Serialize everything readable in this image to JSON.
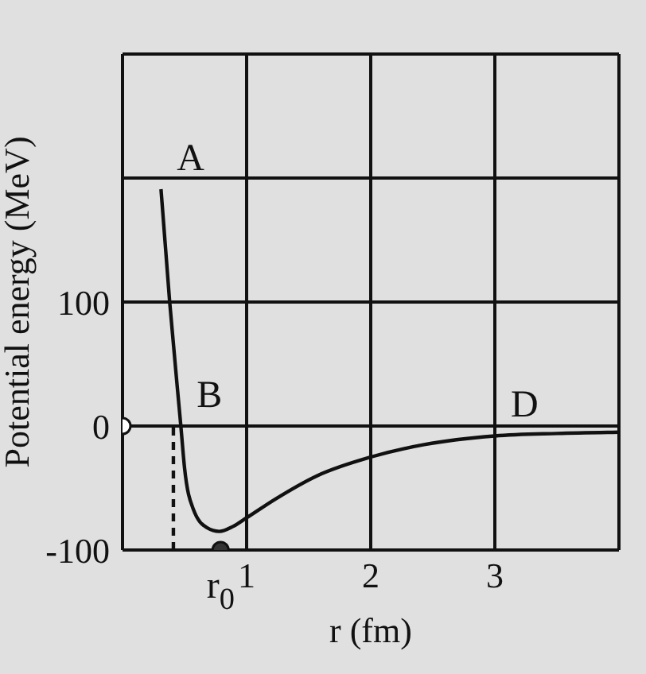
{
  "chart_data": {
    "type": "line",
    "xlabel": "r (fm)",
    "ylabel": "Potential energy (MeV)",
    "xlim": [
      0,
      4
    ],
    "ylim": [
      -100,
      300
    ],
    "xticks": [
      {
        "value": 0,
        "label": null
      },
      1,
      2,
      3,
      {
        "value": 4,
        "label": null
      }
    ],
    "yticks": [
      -100,
      0,
      100,
      {
        "value": 200,
        "label": null
      },
      {
        "value": 300,
        "label": null
      }
    ],
    "grid": true,
    "series": [
      {
        "color": "#111111",
        "marker": "none",
        "line_style": "solid",
        "x": [
          0.31,
          0.38,
          0.47,
          0.5,
          0.57,
          0.68,
          0.78,
          0.89,
          1.0,
          1.23,
          1.57,
          2.0,
          2.43,
          3.0,
          3.5,
          4.0
        ],
        "values": [
          191,
          100,
          0,
          -34,
          -67,
          -82,
          -85,
          -81,
          -74,
          -59,
          -40,
          -25,
          -15,
          -8,
          -6,
          -5
        ]
      },
      {
        "type": "line",
        "color": "#111111",
        "marker": "none",
        "line_style": "dashed",
        "x": [
          0.41,
          0.41
        ],
        "values": [
          -100,
          0
        ]
      },
      {
        "type": "scatter",
        "color": "#333333",
        "marker": "circle",
        "x": [
          0.79
        ],
        "values": [
          -100
        ]
      },
      {
        "type": "scatter",
        "color": "#ffffff",
        "marker": "circle",
        "x": [
          0
        ],
        "values": [
          0
        ]
      }
    ],
    "annotations": [
      {
        "text": "A",
        "x": 0.31,
        "y": 191
      },
      {
        "text": "B",
        "x": 0.47,
        "y": 0
      },
      {
        "text": "D",
        "x": 3.0,
        "y": -8
      },
      {
        "text": "r$_{0}$",
        "x": 0.79,
        "y": -100
      }
    ]
  }
}
